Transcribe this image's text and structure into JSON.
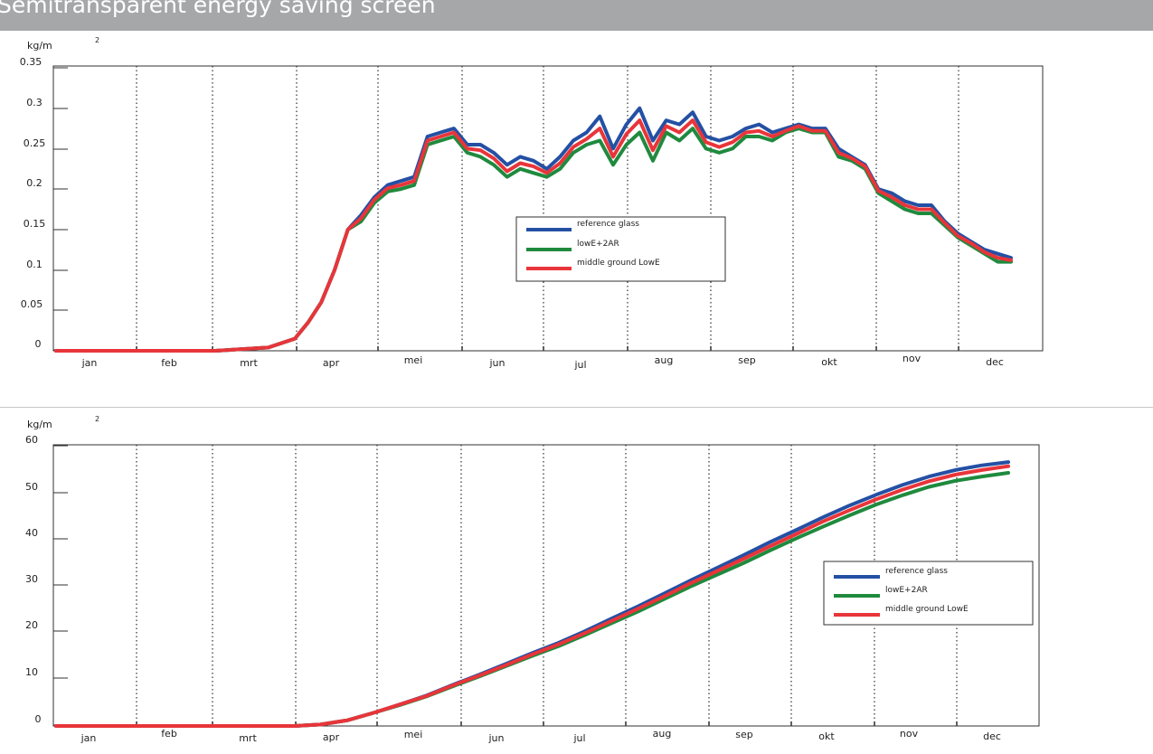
{
  "page": {
    "title": "Semitransparent energy saving screen"
  },
  "colors": {
    "reference glass": "#2450a4",
    "lowE+2AR": "#1f8a3e",
    "middle ground LowE": "#e8353a"
  },
  "chart_data": [
    {
      "type": "line",
      "title": "",
      "xlabel": "",
      "ylabel": "kg/m",
      "ylabel_sup": "2",
      "categories": [
        "jan",
        "feb",
        "mrt",
        "apr",
        "mei",
        "jun",
        "jul",
        "aug",
        "sep",
        "okt",
        "nov",
        "dec"
      ],
      "yticks": [
        "0",
        "0.05",
        "0.1",
        "0.15",
        "0.2",
        "0.25",
        "0.3",
        "0.35"
      ],
      "ylim": [
        0,
        0.35
      ],
      "grid": "vertical dotted month separators",
      "legend_position": "center-right",
      "legend": [
        "reference glass",
        "lowE+2AR",
        "middle ground LowE"
      ],
      "x": [
        0,
        60,
        80,
        90,
        95,
        100,
        105,
        110,
        115,
        120,
        125,
        130,
        135,
        140,
        145,
        150,
        155,
        160,
        165,
        170,
        175,
        180,
        185,
        190,
        195,
        200,
        205,
        210,
        215,
        220,
        225,
        230,
        235,
        240,
        245,
        250,
        255,
        260,
        265,
        270,
        275,
        280,
        285,
        290,
        295,
        300,
        305,
        310,
        315,
        320,
        325,
        330,
        335,
        340,
        345,
        350,
        355,
        360
      ],
      "series": [
        {
          "name": "reference glass",
          "values": [
            0,
            0,
            0.004,
            0.015,
            0.035,
            0.06,
            0.1,
            0.15,
            0.168,
            0.19,
            0.205,
            0.21,
            0.215,
            0.265,
            0.27,
            0.275,
            0.255,
            0.255,
            0.245,
            0.23,
            0.24,
            0.235,
            0.225,
            0.24,
            0.26,
            0.27,
            0.29,
            0.25,
            0.28,
            0.3,
            0.26,
            0.285,
            0.28,
            0.295,
            0.265,
            0.26,
            0.265,
            0.275,
            0.28,
            0.27,
            0.275,
            0.28,
            0.275,
            0.275,
            0.25,
            0.24,
            0.23,
            0.2,
            0.195,
            0.185,
            0.18,
            0.18,
            0.16,
            0.145,
            0.135,
            0.125,
            0.12,
            0.115
          ]
        },
        {
          "name": "lowE+2AR",
          "values": [
            0,
            0,
            0.004,
            0.015,
            0.035,
            0.06,
            0.1,
            0.15,
            0.16,
            0.183,
            0.197,
            0.2,
            0.205,
            0.255,
            0.26,
            0.265,
            0.245,
            0.24,
            0.23,
            0.215,
            0.225,
            0.22,
            0.215,
            0.225,
            0.245,
            0.255,
            0.26,
            0.23,
            0.255,
            0.27,
            0.235,
            0.27,
            0.26,
            0.275,
            0.25,
            0.245,
            0.25,
            0.265,
            0.265,
            0.26,
            0.27,
            0.275,
            0.27,
            0.27,
            0.24,
            0.235,
            0.225,
            0.195,
            0.185,
            0.175,
            0.17,
            0.17,
            0.155,
            0.14,
            0.13,
            0.12,
            0.11,
            0.11
          ]
        },
        {
          "name": "middle ground LowE",
          "values": [
            0,
            0,
            0.004,
            0.015,
            0.035,
            0.06,
            0.1,
            0.15,
            0.164,
            0.187,
            0.201,
            0.205,
            0.21,
            0.26,
            0.265,
            0.27,
            0.25,
            0.248,
            0.238,
            0.222,
            0.232,
            0.228,
            0.22,
            0.232,
            0.252,
            0.262,
            0.275,
            0.24,
            0.268,
            0.285,
            0.248,
            0.278,
            0.27,
            0.285,
            0.258,
            0.252,
            0.258,
            0.27,
            0.272,
            0.265,
            0.272,
            0.278,
            0.272,
            0.272,
            0.245,
            0.238,
            0.228,
            0.198,
            0.19,
            0.18,
            0.175,
            0.175,
            0.158,
            0.142,
            0.133,
            0.122,
            0.115,
            0.112
          ]
        }
      ]
    },
    {
      "type": "line",
      "title": "",
      "xlabel": "",
      "ylabel": "kg/m",
      "ylabel_sup": "2",
      "categories": [
        "jan",
        "feb",
        "mrt",
        "apr",
        "mei",
        "jun",
        "jul",
        "aug",
        "sep",
        "okt",
        "nov",
        "dec"
      ],
      "yticks": [
        "0",
        "10",
        "20",
        "30",
        "40",
        "50",
        "60"
      ],
      "ylim": [
        0,
        60
      ],
      "grid": "vertical dotted month separators",
      "legend_position": "right",
      "legend": [
        "reference glass",
        "lowE+2AR",
        "middle ground LowE"
      ],
      "x": [
        0,
        60,
        90,
        100,
        110,
        120,
        130,
        140,
        150,
        160,
        170,
        180,
        190,
        200,
        210,
        220,
        230,
        240,
        250,
        260,
        270,
        280,
        290,
        300,
        310,
        320,
        330,
        340,
        350,
        360
      ],
      "series": [
        {
          "name": "reference glass",
          "values": [
            0,
            0,
            0,
            0.3,
            1.2,
            2.8,
            4.6,
            6.5,
            8.8,
            11.0,
            13.3,
            15.6,
            17.8,
            20.3,
            23.0,
            25.6,
            28.4,
            31.2,
            33.9,
            36.6,
            39.4,
            42.0,
            44.7,
            47.2,
            49.5,
            51.6,
            53.4,
            54.8,
            55.8,
            56.5
          ]
        },
        {
          "name": "lowE+2AR",
          "values": [
            0,
            0,
            0,
            0.3,
            1.2,
            2.8,
            4.5,
            6.3,
            8.5,
            10.6,
            12.8,
            15.0,
            17.1,
            19.5,
            22.0,
            24.5,
            27.2,
            29.9,
            32.4,
            34.9,
            37.6,
            40.2,
            42.7,
            45.1,
            47.4,
            49.4,
            51.2,
            52.5,
            53.4,
            54.2
          ]
        },
        {
          "name": "middle ground LowE",
          "values": [
            0,
            0,
            0,
            0.3,
            1.2,
            2.8,
            4.6,
            6.4,
            8.7,
            10.8,
            13.0,
            15.3,
            17.5,
            19.9,
            22.5,
            25.1,
            27.8,
            30.6,
            33.2,
            35.8,
            38.5,
            41.1,
            43.8,
            46.2,
            48.5,
            50.6,
            52.4,
            53.8,
            54.8,
            55.6
          ]
        }
      ]
    }
  ]
}
